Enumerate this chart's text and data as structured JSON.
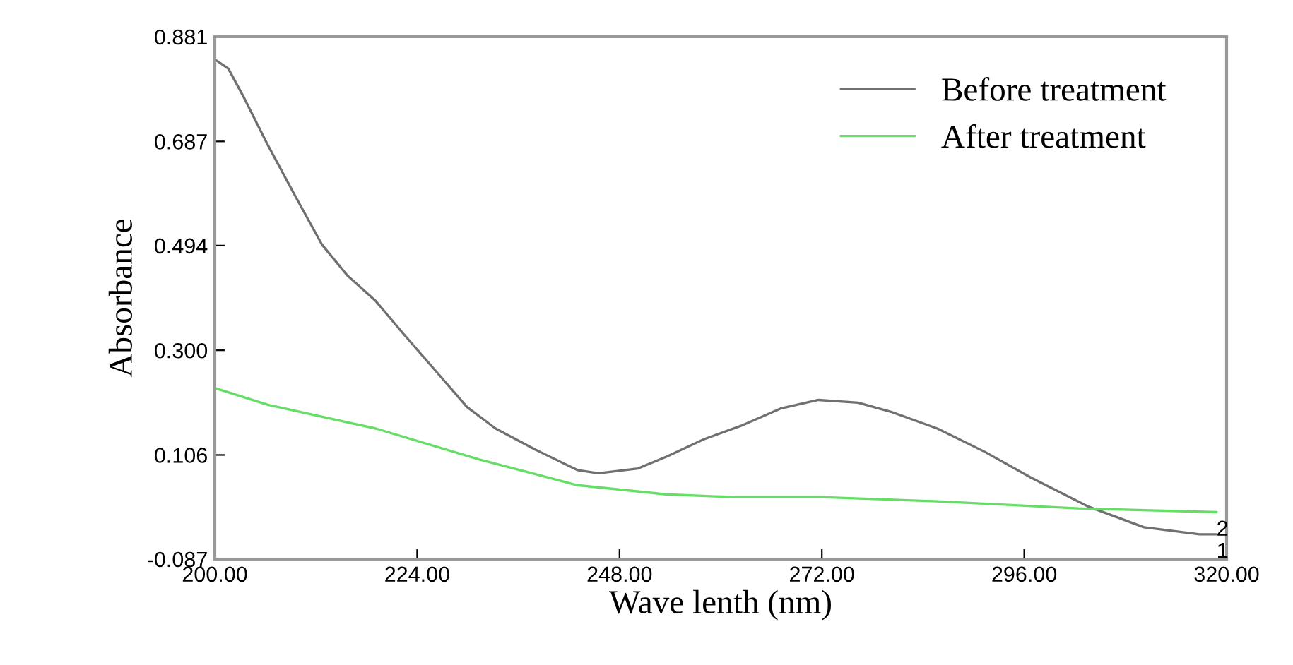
{
  "chart_data": {
    "type": "line",
    "xlabel": "Wave lenth (nm)",
    "ylabel": "Absorbance",
    "xlim": [
      200,
      320
    ],
    "ylim": [
      -0.087,
      0.881
    ],
    "xticks": [
      {
        "value": 200,
        "label": "200.00"
      },
      {
        "value": 224,
        "label": "224.00"
      },
      {
        "value": 248,
        "label": "248.00"
      },
      {
        "value": 272,
        "label": "272.00"
      },
      {
        "value": 296,
        "label": "296.00"
      },
      {
        "value": 320,
        "label": "320.00"
      }
    ],
    "yticks": [
      -0.087,
      0.106,
      {
        "value": 0.3,
        "label": "0.300"
      },
      {
        "value": 0.494,
        "label": "0.494"
      },
      0.687,
      0.881
    ],
    "grid": false,
    "legend": "top right",
    "marker": "none",
    "line_style": "solid",
    "series": [
      {
        "name": "Before treatment",
        "color": "#707070",
        "x": [
          200,
          201.6,
          203.5,
          206.3,
          209.6,
          212.7,
          215.7,
          219.1,
          222.4,
          226.3,
          229.9,
          233.3,
          238,
          243,
          245.5,
          250.2,
          253.6,
          258,
          262.4,
          267.1,
          271.6,
          276.3,
          280.2,
          285.7,
          291.3,
          296.8,
          303.5,
          310.2,
          316.8,
          318.8
        ],
        "values": [
          0.839,
          0.822,
          0.767,
          0.68,
          0.584,
          0.496,
          0.439,
          0.391,
          0.33,
          0.26,
          0.195,
          0.155,
          0.116,
          0.078,
          0.072,
          0.081,
          0.103,
          0.135,
          0.16,
          0.192,
          0.208,
          0.203,
          0.186,
          0.155,
          0.112,
          0.064,
          0.011,
          -0.028,
          -0.041,
          -0.041
        ]
      },
      {
        "name": "After treatment",
        "color": "#66dd66",
        "x": [
          200,
          206.3,
          219.1,
          231.3,
          243,
          253.5,
          261.3,
          271.8,
          285.7,
          302.4,
          318.8
        ],
        "values": [
          0.23,
          0.199,
          0.155,
          0.098,
          0.05,
          0.033,
          0.028,
          0.028,
          0.02,
          0.007,
          0.0
        ]
      }
    ],
    "annotations": [
      {
        "text": "2",
        "x": 318.8,
        "y": 0.0
      },
      {
        "text": "1",
        "x": 318.8,
        "y": -0.041
      }
    ]
  }
}
